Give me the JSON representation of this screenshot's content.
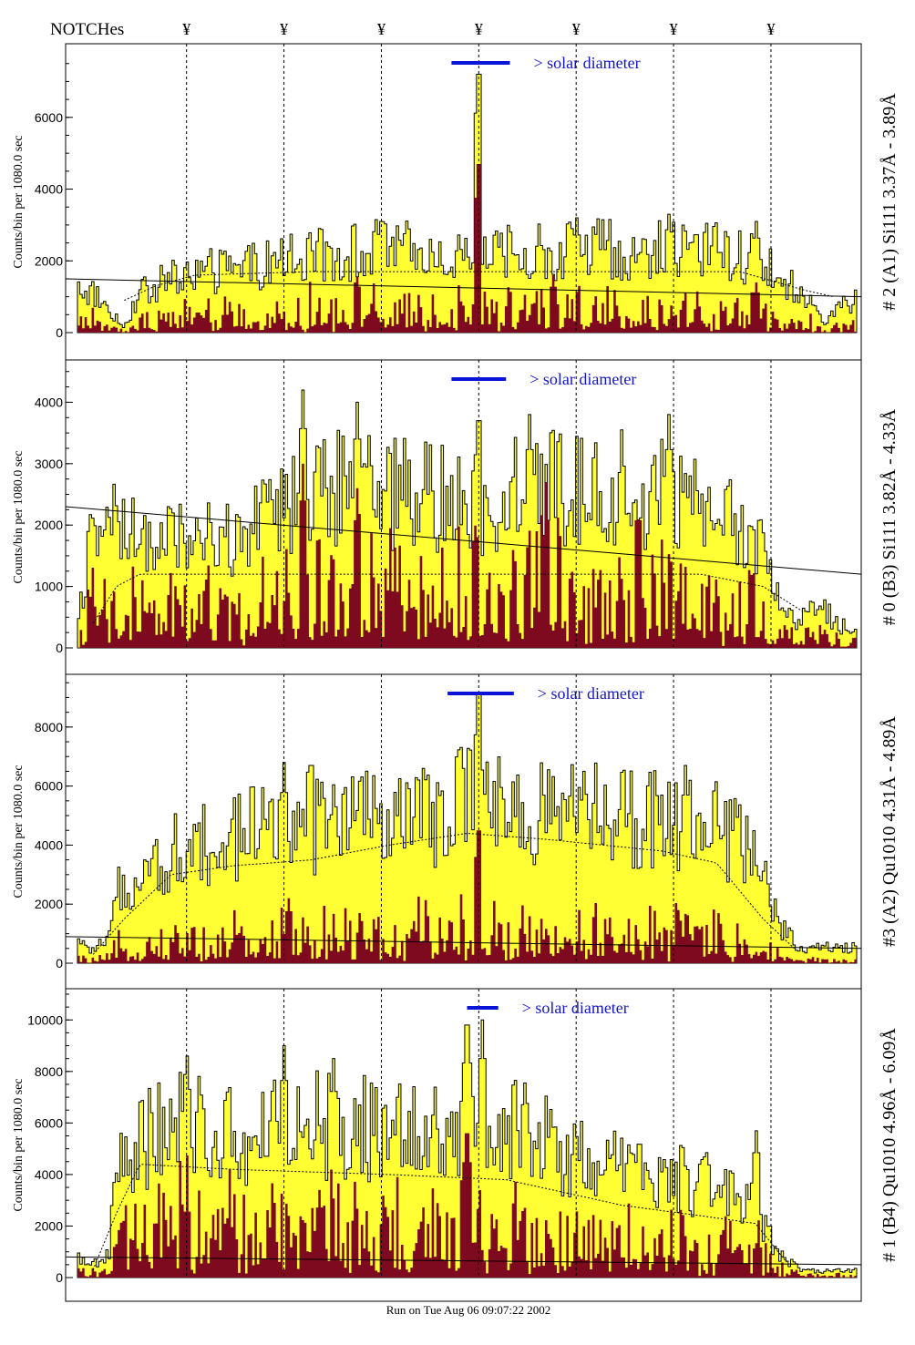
{
  "page": {
    "notches_label": "NOTCHes",
    "notch_symbol": "¥",
    "footer": "Run on Tue Aug 06 09:07:22 2002",
    "ylabel": "Counts/bin per   1080.0 sec",
    "legend_text": "> solar diameter",
    "colors": {
      "fill": "#ffff33",
      "inner": "#7d0a1e",
      "legend_bar": "#0a14d8",
      "legend_text": "#1414c8",
      "axis": "#000000"
    }
  },
  "chart_data": [
    {
      "type": "area",
      "title": "# 2 (A1) Si111  3.37Å - 3.89Å",
      "ylabel": "Counts/bin per   1080.0 sec",
      "ylim": [
        0,
        7900
      ],
      "yticks": [
        0,
        2000,
        4000,
        6000
      ],
      "notches": [
        0.14,
        0.265,
        0.39,
        0.515,
        0.64,
        0.765,
        0.89
      ],
      "legend_text": "> solar diameter",
      "legend_bar": [
        0.48,
        0.555
      ],
      "series": [
        {
          "name": "total counts",
          "envelope": [
            [
              0.0,
              1400
            ],
            [
              0.02,
              1300
            ],
            [
              0.045,
              600
            ],
            [
              0.06,
              200
            ],
            [
              0.08,
              1200
            ],
            [
              0.1,
              1500
            ],
            [
              0.14,
              1900
            ],
            [
              0.2,
              2000
            ],
            [
              0.265,
              2300
            ],
            [
              0.33,
              2500
            ],
            [
              0.39,
              2700
            ],
            [
              0.45,
              2500
            ],
            [
              0.5,
              2500
            ],
            [
              0.515,
              2600
            ],
            [
              0.55,
              2500
            ],
            [
              0.6,
              2600
            ],
            [
              0.64,
              2700
            ],
            [
              0.7,
              2600
            ],
            [
              0.765,
              2600
            ],
            [
              0.82,
              2600
            ],
            [
              0.86,
              2400
            ],
            [
              0.9,
              1800
            ],
            [
              0.93,
              1200
            ],
            [
              0.96,
              300
            ],
            [
              0.98,
              900
            ],
            [
              1.0,
              1000
            ]
          ],
          "spikes": [
            [
              0.39,
              3100
            ],
            [
              0.515,
              7200
            ],
            [
              0.64,
              3200
            ],
            [
              0.76,
              3300
            ],
            [
              0.87,
              3100
            ]
          ]
        },
        {
          "name": "inner counts",
          "base_ratio": 0.28,
          "spikes": [
            [
              0.515,
              4700
            ],
            [
              0.36,
              1600
            ],
            [
              0.61,
              1600
            ],
            [
              0.87,
              1400
            ]
          ]
        }
      ],
      "fit_curve": [
        [
          0.06,
          900
        ],
        [
          0.1,
          1300
        ],
        [
          0.15,
          1600
        ],
        [
          0.3,
          1700
        ],
        [
          0.7,
          1700
        ],
        [
          0.85,
          1700
        ],
        [
          0.93,
          1200
        ],
        [
          0.97,
          1000
        ]
      ],
      "solid_line": [
        [
          0.0,
          1500
        ],
        [
          1.0,
          1000
        ]
      ]
    },
    {
      "type": "area",
      "title": "# 0 (B3) Si111  3.82Å - 4.33Å",
      "ylabel": "Counts/bin per   1080.0 sec",
      "ylim": [
        0,
        4600
      ],
      "yticks": [
        0,
        1000,
        2000,
        3000,
        4000
      ],
      "notches": [
        0.14,
        0.265,
        0.39,
        0.515,
        0.64,
        0.765,
        0.89
      ],
      "legend_text": "> solar diameter",
      "legend_bar": [
        0.48,
        0.55
      ],
      "series": [
        {
          "name": "total counts",
          "envelope": [
            [
              0.0,
              300
            ],
            [
              0.015,
              1900
            ],
            [
              0.04,
              2300
            ],
            [
              0.08,
              2000
            ],
            [
              0.14,
              2100
            ],
            [
              0.2,
              2000
            ],
            [
              0.265,
              2500
            ],
            [
              0.3,
              3000
            ],
            [
              0.34,
              3000
            ],
            [
              0.39,
              2900
            ],
            [
              0.45,
              2800
            ],
            [
              0.515,
              2700
            ],
            [
              0.58,
              3000
            ],
            [
              0.64,
              3000
            ],
            [
              0.7,
              3000
            ],
            [
              0.765,
              2800
            ],
            [
              0.82,
              2400
            ],
            [
              0.86,
              2200
            ],
            [
              0.89,
              1500
            ],
            [
              0.92,
              400
            ],
            [
              0.95,
              800
            ],
            [
              0.98,
              400
            ],
            [
              1.0,
              400
            ]
          ],
          "spikes": [
            [
              0.29,
              4200
            ],
            [
              0.36,
              4000
            ],
            [
              0.515,
              3700
            ],
            [
              0.58,
              3800
            ],
            [
              0.76,
              3800
            ]
          ]
        },
        {
          "name": "inner counts",
          "base_ratio": 0.35,
          "spikes": [
            [
              0.29,
              3000
            ],
            [
              0.36,
              2600
            ],
            [
              0.6,
              2700
            ],
            [
              0.72,
              2600
            ]
          ]
        }
      ],
      "fit_curve": [
        [
          0.02,
          400
        ],
        [
          0.05,
          1000
        ],
        [
          0.08,
          1200
        ],
        [
          0.3,
          1200
        ],
        [
          0.8,
          1200
        ],
        [
          0.88,
          1000
        ],
        [
          0.93,
          600
        ]
      ],
      "solid_line": [
        [
          0.0,
          2300
        ],
        [
          1.0,
          1200
        ]
      ]
    },
    {
      "type": "area",
      "title": "#3 (A2) Qu1010  4.31Å - 4.89Å",
      "ylabel": "Counts/bin per   1080.0 sec",
      "ylim": [
        0,
        9600
      ],
      "yticks": [
        0,
        2000,
        4000,
        6000,
        8000
      ],
      "notches": [
        0.14,
        0.265,
        0.39,
        0.515,
        0.64,
        0.765,
        0.89
      ],
      "legend_text": "> solar diameter",
      "legend_bar": [
        0.475,
        0.56
      ],
      "series": [
        {
          "name": "total counts",
          "envelope": [
            [
              0.0,
              800
            ],
            [
              0.02,
              500
            ],
            [
              0.04,
              900
            ],
            [
              0.055,
              3000
            ],
            [
              0.1,
              4000
            ],
            [
              0.14,
              4400
            ],
            [
              0.2,
              5000
            ],
            [
              0.265,
              5300
            ],
            [
              0.33,
              5500
            ],
            [
              0.39,
              5600
            ],
            [
              0.45,
              5800
            ],
            [
              0.5,
              6200
            ],
            [
              0.515,
              6500
            ],
            [
              0.55,
              5900
            ],
            [
              0.6,
              5800
            ],
            [
              0.64,
              5700
            ],
            [
              0.7,
              5600
            ],
            [
              0.765,
              5400
            ],
            [
              0.82,
              5300
            ],
            [
              0.88,
              3800
            ],
            [
              0.9,
              1500
            ],
            [
              0.93,
              500
            ],
            [
              0.96,
              600
            ],
            [
              1.0,
              600
            ]
          ],
          "spikes": [
            [
              0.265,
              6800
            ],
            [
              0.3,
              6700
            ],
            [
              0.515,
              9100
            ],
            [
              0.65,
              6500
            ],
            [
              0.78,
              6700
            ]
          ]
        },
        {
          "name": "inner counts",
          "base_ratio": 0.2,
          "spikes": [
            [
              0.515,
              4500
            ],
            [
              0.27,
              2200
            ],
            [
              0.77,
              1800
            ]
          ]
        }
      ],
      "fit_curve": [
        [
          0.02,
          300
        ],
        [
          0.06,
          1500
        ],
        [
          0.12,
          3000
        ],
        [
          0.2,
          3300
        ],
        [
          0.3,
          3500
        ],
        [
          0.4,
          4000
        ],
        [
          0.5,
          4400
        ],
        [
          0.6,
          4200
        ],
        [
          0.75,
          3800
        ],
        [
          0.82,
          3400
        ],
        [
          0.88,
          1500
        ],
        [
          0.92,
          500
        ]
      ],
      "solid_line": [
        [
          0.0,
          900
        ],
        [
          1.0,
          500
        ]
      ]
    },
    {
      "type": "area",
      "title": "# 1 (B4) Qu1010  4.96Å - 6.09Å",
      "ylabel": "Counts/bin per   1080.0 sec",
      "ylim": [
        0,
        11000
      ],
      "yticks": [
        0,
        2000,
        4000,
        6000,
        8000,
        10000
      ],
      "notches": [
        0.14,
        0.265,
        0.39,
        0.515,
        0.64,
        0.765,
        0.89
      ],
      "legend_text": "> solar diameter",
      "legend_bar": [
        0.5,
        0.54
      ],
      "series": [
        {
          "name": "total counts",
          "envelope": [
            [
              0.0,
              900
            ],
            [
              0.02,
              600
            ],
            [
              0.04,
              1000
            ],
            [
              0.05,
              4500
            ],
            [
              0.1,
              6500
            ],
            [
              0.14,
              6800
            ],
            [
              0.2,
              6500
            ],
            [
              0.265,
              6500
            ],
            [
              0.33,
              6800
            ],
            [
              0.39,
              6400
            ],
            [
              0.45,
              6600
            ],
            [
              0.515,
              7000
            ],
            [
              0.56,
              6600
            ],
            [
              0.6,
              6000
            ],
            [
              0.64,
              5200
            ],
            [
              0.7,
              4800
            ],
            [
              0.765,
              4500
            ],
            [
              0.82,
              4000
            ],
            [
              0.86,
              3500
            ],
            [
              0.88,
              2500
            ],
            [
              0.9,
              1000
            ],
            [
              0.93,
              300
            ],
            [
              0.96,
              300
            ],
            [
              1.0,
              300
            ]
          ],
          "spikes": [
            [
              0.14,
              8600
            ],
            [
              0.265,
              9000
            ],
            [
              0.33,
              8500
            ],
            [
              0.5,
              9800
            ],
            [
              0.52,
              10000
            ],
            [
              0.87,
              5700
            ]
          ]
        },
        {
          "name": "inner counts",
          "base_ratio": 0.32,
          "spikes": [
            [
              0.5,
              5600
            ],
            [
              0.31,
              3400
            ],
            [
              0.14,
              3200
            ]
          ]
        }
      ],
      "fit_curve": [
        [
          0.02,
          300
        ],
        [
          0.05,
          2500
        ],
        [
          0.08,
          4400
        ],
        [
          0.2,
          4200
        ],
        [
          0.4,
          4000
        ],
        [
          0.55,
          3800
        ],
        [
          0.7,
          2800
        ],
        [
          0.8,
          2400
        ],
        [
          0.87,
          2100
        ],
        [
          0.91,
          600
        ]
      ],
      "solid_line": [
        [
          0.0,
          800
        ],
        [
          1.0,
          500
        ]
      ]
    }
  ]
}
